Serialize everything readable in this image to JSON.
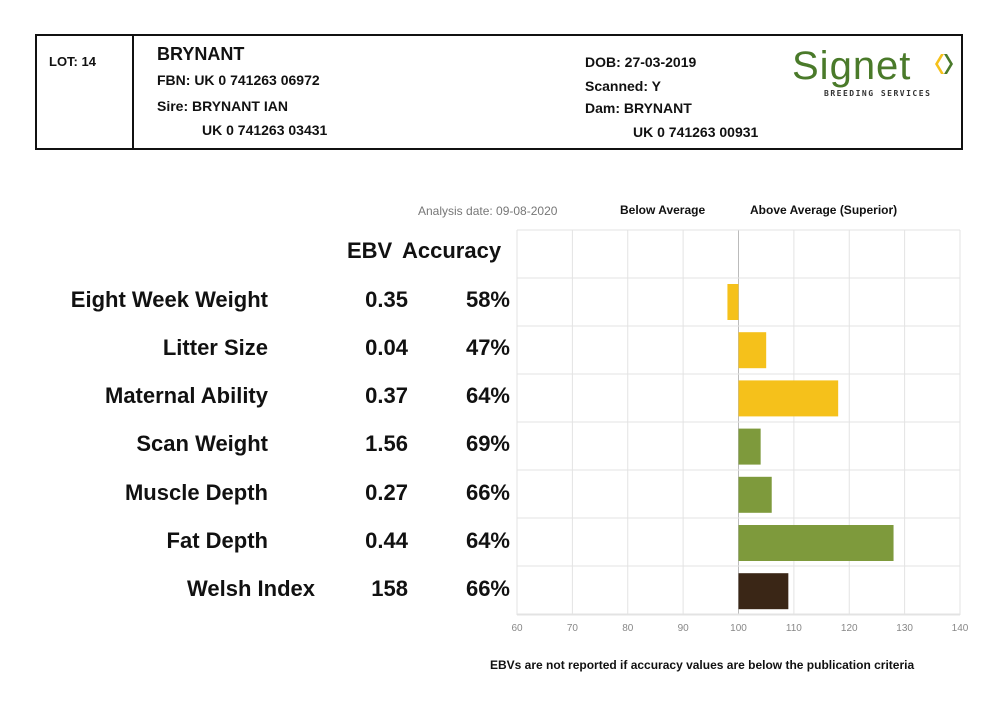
{
  "header": {
    "lot": "LOT: 14",
    "name": "BRYNANT",
    "fbn": "FBN: UK 0 741263 06972",
    "sire": "Sire: BRYNANT IAN",
    "sire_id": "UK 0 741263 03431",
    "dob": "DOB: 27-03-2019",
    "scanned": "Scanned: Y",
    "dam": "Dam: BRYNANT",
    "dam_id": "UK 0 741263 00931",
    "logo_word": "Signet",
    "logo_sub": "BREEDING SERVICES"
  },
  "labels": {
    "analysis_date": "Analysis date: 09-08-2020",
    "below_average": "Below Average",
    "above_average": "Above Average (Superior)",
    "col_ebv": "EBV",
    "col_accuracy": "Accuracy",
    "footnote": "EBVs are not reported if accuracy values are below the publication criteria"
  },
  "rows": [
    {
      "trait": "Eight Week Weight",
      "ebv": "0.35",
      "accuracy": "58%"
    },
    {
      "trait": "Litter Size",
      "ebv": "0.04",
      "accuracy": "47%"
    },
    {
      "trait": "Maternal Ability",
      "ebv": "0.37",
      "accuracy": "64%"
    },
    {
      "trait": "Scan Weight",
      "ebv": "1.56",
      "accuracy": "69%"
    },
    {
      "trait": "Muscle Depth",
      "ebv": "0.27",
      "accuracy": "66%"
    },
    {
      "trait": "Fat Depth",
      "ebv": "0.44",
      "accuracy": "64%"
    },
    {
      "trait": "Welsh Index",
      "ebv": "158",
      "accuracy": "66%"
    }
  ],
  "chart_data": {
    "type": "bar",
    "orientation": "horizontal",
    "baseline": 100,
    "xlim": [
      60,
      140
    ],
    "xticks": [
      60,
      70,
      80,
      90,
      100,
      110,
      120,
      130,
      140
    ],
    "grid": true,
    "categories": [
      "Eight Week Weight",
      "Litter Size",
      "Maternal Ability",
      "Scan Weight",
      "Muscle Depth",
      "Fat Depth",
      "Welsh Index"
    ],
    "values": [
      98,
      105,
      118,
      104,
      106,
      128,
      109
    ],
    "colors": [
      "#f5c11b",
      "#f5c11b",
      "#f5c11b",
      "#7e9a3c",
      "#7e9a3c",
      "#7e9a3c",
      "#3a2616"
    ]
  }
}
